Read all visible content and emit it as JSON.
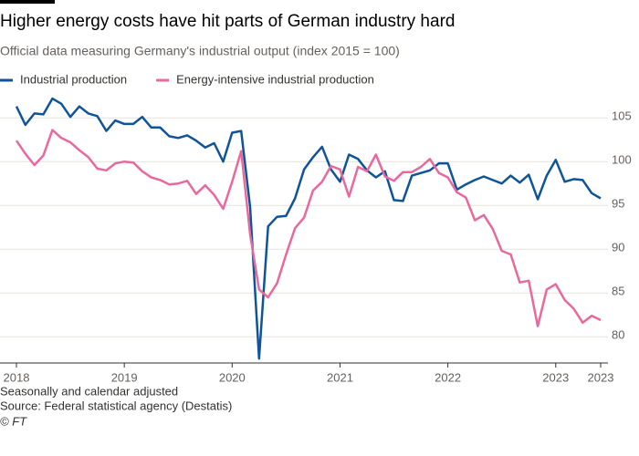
{
  "chart_data": {
    "type": "line",
    "title": "Higher energy costs have hit parts of German industry hard",
    "subtitle": "Official data measuring Germany's industrial output (index 2015 = 100)",
    "categories": [
      "2018",
      null,
      null,
      null,
      null,
      null,
      null,
      null,
      null,
      null,
      null,
      null,
      "2019",
      null,
      null,
      null,
      null,
      null,
      null,
      null,
      null,
      null,
      null,
      null,
      "2020",
      null,
      null,
      null,
      null,
      null,
      null,
      null,
      null,
      null,
      null,
      null,
      "2021",
      null,
      null,
      null,
      null,
      null,
      null,
      null,
      null,
      null,
      null,
      null,
      "2022",
      null,
      null,
      null,
      null,
      null,
      null,
      null,
      null,
      null,
      null,
      null,
      "2023",
      null,
      null,
      null,
      null,
      "2023"
    ],
    "series": [
      {
        "name": "Industrial production",
        "color": "#0f5499",
        "values": [
          106.3,
          104.2,
          105.5,
          105.4,
          107.2,
          106.6,
          105.1,
          106.3,
          105.5,
          105.2,
          103.5,
          104.7,
          104.3,
          104.3,
          105.1,
          103.9,
          103.9,
          102.9,
          102.7,
          103.0,
          102.4,
          101.6,
          102.1,
          100.0,
          103.3,
          103.5,
          94.8,
          77.5,
          92.6,
          93.7,
          93.8,
          95.8,
          99.1,
          100.5,
          101.7,
          99.1,
          97.7,
          100.8,
          100.3,
          99.0,
          98.2,
          98.9,
          95.6,
          95.5,
          98.4,
          98.7,
          99.0,
          99.8,
          99.8,
          96.8,
          97.4,
          97.9,
          98.3,
          97.9,
          97.5,
          98.4,
          97.6,
          98.5,
          95.7,
          98.4,
          100.2,
          97.7,
          98.0,
          97.9,
          96.4,
          95.8
        ]
      },
      {
        "name": "Energy-intensive industrial production",
        "color": "#e9689d",
        "values": [
          102.4,
          100.9,
          99.6,
          100.7,
          103.6,
          102.7,
          102.2,
          101.3,
          100.5,
          99.2,
          99.0,
          99.8,
          100.0,
          99.9,
          98.9,
          98.2,
          97.9,
          97.4,
          97.5,
          97.8,
          96.3,
          97.3,
          96.2,
          94.6,
          97.7,
          101.2,
          91.7,
          85.4,
          84.5,
          86.1,
          89.4,
          92.4,
          93.6,
          96.7,
          97.7,
          99.5,
          99.1,
          96.0,
          99.4,
          98.9,
          100.8,
          98.3,
          97.8,
          98.8,
          98.8,
          99.4,
          100.3,
          98.7,
          98.2,
          96.5,
          95.9,
          93.3,
          93.9,
          92.3,
          89.8,
          89.4,
          86.2,
          86.4,
          81.2,
          85.4,
          86.0,
          84.2,
          83.2,
          81.6,
          82.4,
          81.9
        ]
      }
    ],
    "ylim": [
      77,
      107
    ],
    "yticks": [
      80,
      85,
      90,
      95,
      100,
      105
    ],
    "grid": true,
    "notes": [
      "Seasonally and calendar adjusted",
      "Source: Federal statistical agency (Destatis)",
      "© FT"
    ]
  }
}
